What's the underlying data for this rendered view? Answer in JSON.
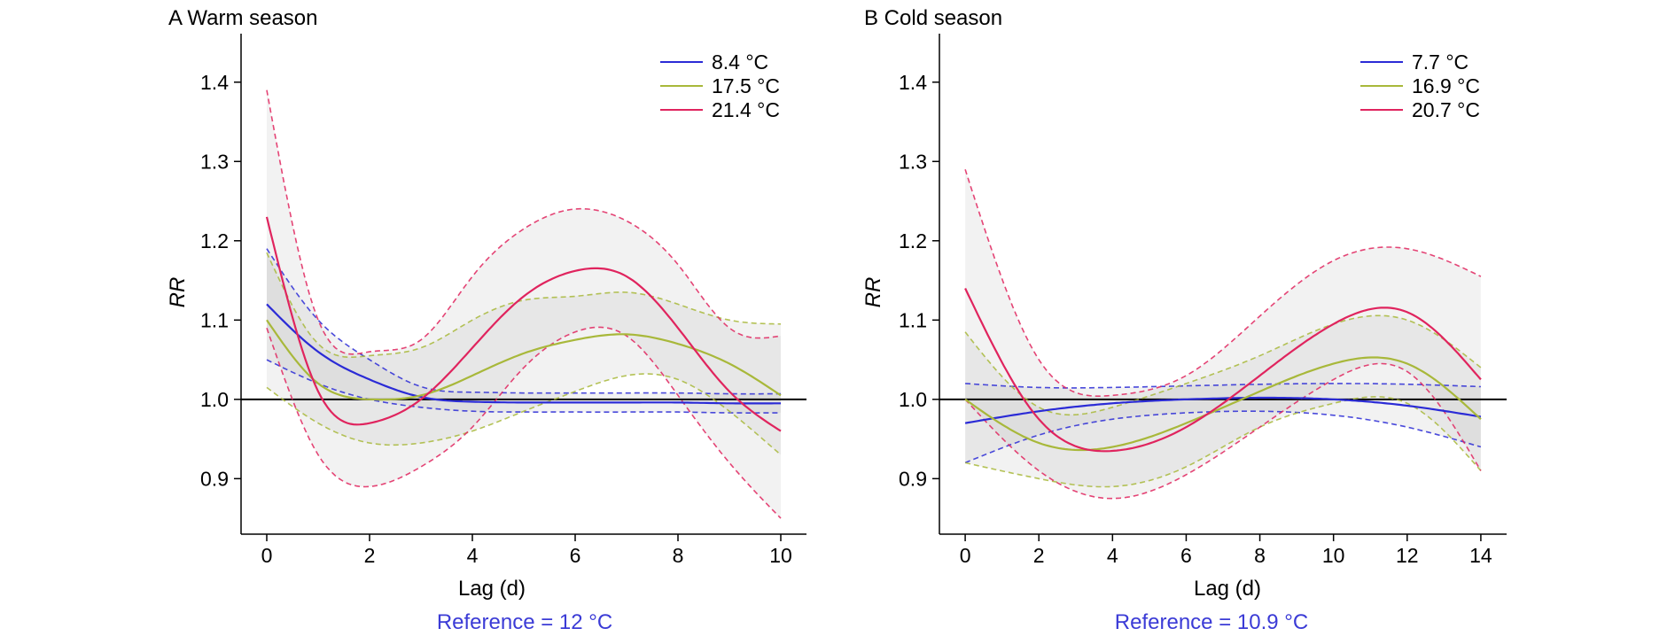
{
  "chart_data": [
    {
      "type": "line",
      "title": "A Warm season",
      "xlabel": "Lag (d)",
      "ylabel": "RR",
      "xlim": [
        -0.5,
        10.5
      ],
      "ylim": [
        0.83,
        1.45
      ],
      "xticks": [
        0,
        2,
        4,
        6,
        8,
        10
      ],
      "yticks": [
        0.9,
        1.0,
        1.1,
        1.2,
        1.3,
        1.4
      ],
      "reference_line": 1.0,
      "note": "Reference = 12 °C",
      "note_color": "#3b3bd6",
      "legend_position": "top-right",
      "series": [
        {
          "name": "8.4 °C",
          "color": "#2b2bd6",
          "x": [
            0,
            1,
            2,
            3,
            4,
            5,
            6,
            7,
            8,
            9,
            10
          ],
          "y": [
            1.12,
            1.06,
            1.025,
            1.003,
            0.997,
            0.996,
            0.996,
            0.996,
            0.996,
            0.995,
            0.995
          ],
          "ci_lower": [
            1.05,
            1.02,
            1.0,
            0.99,
            0.985,
            0.984,
            0.984,
            0.984,
            0.984,
            0.983,
            0.983
          ],
          "ci_upper": [
            1.19,
            1.1,
            1.05,
            1.016,
            1.009,
            1.008,
            1.008,
            1.008,
            1.008,
            1.007,
            1.007
          ]
        },
        {
          "name": "17.5 °C",
          "color": "#a8b83a",
          "x": [
            0,
            1,
            2,
            3,
            4,
            5,
            6,
            7,
            8,
            9,
            10
          ],
          "y": [
            1.1,
            1.02,
            1.0,
            1.005,
            1.03,
            1.058,
            1.075,
            1.082,
            1.07,
            1.045,
            1.005
          ],
          "ci_lower": [
            1.015,
            0.97,
            0.945,
            0.945,
            0.96,
            0.985,
            1.01,
            1.03,
            1.025,
            0.985,
            0.93
          ],
          "ci_upper": [
            1.185,
            1.07,
            1.055,
            1.065,
            1.1,
            1.125,
            1.13,
            1.135,
            1.12,
            1.1,
            1.095
          ]
        },
        {
          "name": "21.4 °C",
          "color": "#e0245e",
          "x": [
            0,
            1,
            2,
            3,
            4,
            5,
            6,
            7,
            8,
            9,
            10
          ],
          "y": [
            1.23,
            1.01,
            0.97,
            1.0,
            1.065,
            1.13,
            1.162,
            1.155,
            1.09,
            1.01,
            0.96
          ],
          "ci_lower": [
            1.09,
            0.93,
            0.89,
            0.915,
            0.965,
            1.04,
            1.085,
            1.08,
            1.005,
            0.92,
            0.85
          ],
          "ci_upper": [
            1.39,
            1.1,
            1.06,
            1.075,
            1.155,
            1.215,
            1.24,
            1.225,
            1.17,
            1.09,
            1.08
          ]
        }
      ]
    },
    {
      "type": "line",
      "title": "B Cold season",
      "xlabel": "Lag (d)",
      "ylabel": "RR",
      "xlim": [
        -0.7,
        14.7
      ],
      "ylim": [
        0.83,
        1.45
      ],
      "xticks": [
        0,
        2,
        4,
        6,
        8,
        10,
        12,
        14
      ],
      "yticks": [
        0.9,
        1.0,
        1.1,
        1.2,
        1.3,
        1.4
      ],
      "reference_line": 1.0,
      "note": "Reference = 10.9 °C",
      "note_color": "#3b3bd6",
      "legend_position": "top-right",
      "series": [
        {
          "name": "7.7 °C",
          "color": "#2b2bd6",
          "x": [
            0,
            2,
            4,
            6,
            8,
            10,
            12,
            14
          ],
          "y": [
            0.97,
            0.985,
            0.995,
            1.0,
            1.002,
            1.0,
            0.992,
            0.978
          ],
          "ci_lower": [
            0.92,
            0.955,
            0.975,
            0.983,
            0.985,
            0.98,
            0.965,
            0.94
          ],
          "ci_upper": [
            1.02,
            1.015,
            1.015,
            1.017,
            1.019,
            1.02,
            1.019,
            1.016
          ]
        },
        {
          "name": "16.9 °C",
          "color": "#a8b83a",
          "x": [
            0,
            2,
            4,
            6,
            8,
            10,
            12,
            14
          ],
          "y": [
            1.0,
            0.945,
            0.94,
            0.97,
            1.01,
            1.045,
            1.045,
            0.975
          ],
          "ci_lower": [
            0.92,
            0.9,
            0.89,
            0.915,
            0.965,
            0.995,
            0.995,
            0.91
          ],
          "ci_upper": [
            1.085,
            0.99,
            0.99,
            1.02,
            1.055,
            1.095,
            1.1,
            1.04
          ]
        },
        {
          "name": "20.7 °C",
          "color": "#e0245e",
          "x": [
            0,
            2,
            4,
            6,
            8,
            10,
            12,
            14
          ],
          "y": [
            1.14,
            0.975,
            0.935,
            0.965,
            1.03,
            1.095,
            1.11,
            1.025
          ],
          "ci_lower": [
            1.0,
            0.91,
            0.875,
            0.905,
            0.965,
            1.025,
            1.035,
            0.91
          ],
          "ci_upper": [
            1.29,
            1.05,
            1.005,
            1.03,
            1.105,
            1.175,
            1.19,
            1.155
          ]
        }
      ]
    }
  ]
}
